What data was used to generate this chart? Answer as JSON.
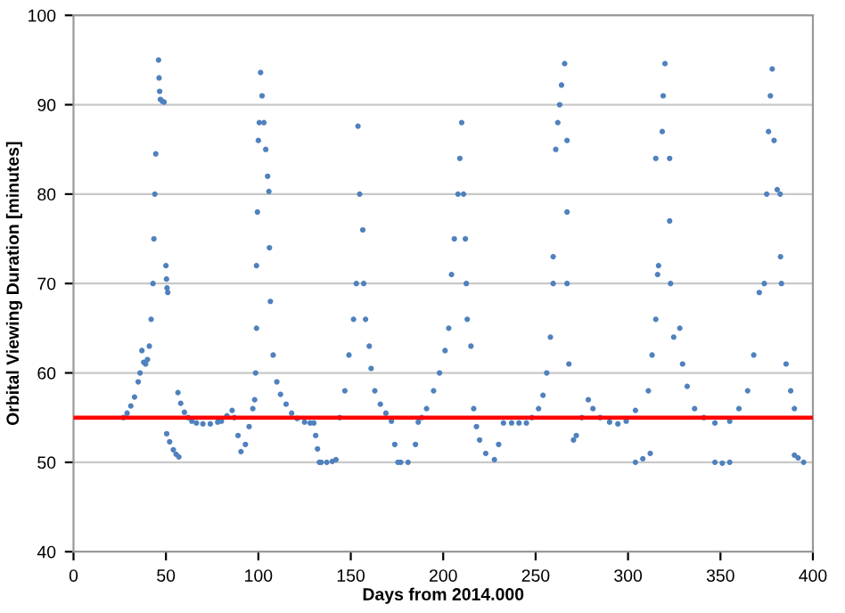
{
  "chart_data": {
    "type": "scatter",
    "xlabel": "Days from 2014.000",
    "ylabel": "Orbital Viewing Duration [minutes]",
    "xlim": [
      0,
      400
    ],
    "xticks": [
      0,
      50,
      100,
      150,
      200,
      250,
      300,
      350,
      400
    ],
    "ylim": [
      40,
      100
    ],
    "yticks": [
      40,
      50,
      60,
      70,
      80,
      90,
      100
    ],
    "grid": "y",
    "marker": "circle",
    "series": [
      {
        "color": "#4f81bd",
        "x": [
          27,
          29,
          31,
          33,
          35,
          36,
          37,
          38,
          39,
          40,
          41,
          42,
          43,
          43.5,
          44,
          44.5,
          46,
          46.3,
          46.6,
          47,
          48,
          49,
          50,
          50.3,
          50.6,
          51,
          50.4,
          52,
          54,
          55.5,
          57,
          56.5,
          58,
          60,
          62,
          64,
          66.5,
          70,
          74,
          78,
          80,
          83,
          85.8,
          87,
          89,
          90.6,
          93,
          95,
          97,
          98,
          98.5,
          99,
          99,
          99.5,
          100,
          100.5,
          101.2,
          102,
          103,
          104,
          105,
          105.7,
          106,
          106.5,
          108,
          110,
          112,
          115,
          118,
          121,
          125,
          128,
          130,
          131,
          132,
          133,
          134,
          137,
          140,
          142,
          144,
          146.8,
          149,
          151.5,
          153,
          153.9,
          154.8,
          156.5,
          157,
          158,
          160,
          161,
          163,
          166,
          169,
          172,
          173.8,
          175.5,
          177,
          181,
          185,
          186.5,
          188.4,
          191,
          194.8,
          198,
          201,
          203,
          204.5,
          206,
          208,
          209,
          210,
          211,
          212,
          212.5,
          213,
          215,
          216.5,
          218,
          219.7,
          223,
          227.7,
          230,
          232.6,
          237,
          241,
          245,
          248,
          251.6,
          254,
          256,
          258,
          259.5,
          259.5,
          260.9,
          262,
          263,
          264,
          265.7,
          267,
          267,
          267,
          268,
          270.5,
          272,
          275,
          278.5,
          281,
          284.9,
          290,
          294.5,
          299,
          304,
          304,
          308,
          312,
          311,
          313,
          315,
          316,
          316.5,
          315,
          318.5,
          319,
          320,
          322.5,
          322.5,
          323,
          324.7,
          328,
          329.5,
          332,
          336,
          341,
          347,
          347,
          351,
          355,
          355,
          360,
          364.7,
          368,
          371,
          373.7,
          375,
          376,
          377,
          378,
          379,
          380.7,
          382.3,
          382.5,
          383,
          385.5,
          388,
          390,
          390,
          392,
          395
        ],
        "values": [
          55,
          55.5,
          56.3,
          57.3,
          59,
          60,
          62.5,
          61.2,
          61,
          61.5,
          63,
          66,
          70,
          75,
          80,
          84.5,
          95,
          93,
          91.5,
          90.6,
          90.4,
          90.3,
          72,
          70.5,
          69.5,
          69,
          53.2,
          52.3,
          51.4,
          50.9,
          50.6,
          57.8,
          56.6,
          55.6,
          55,
          54.6,
          54.4,
          54.3,
          54.3,
          54.5,
          54.6,
          55.2,
          55.8,
          55,
          53,
          51.2,
          52,
          54,
          56,
          57,
          60,
          65,
          72,
          78,
          86,
          88,
          93.6,
          91,
          88,
          85,
          82,
          80.3,
          74,
          68,
          62,
          59,
          57.6,
          56.5,
          55.5,
          54.9,
          54.5,
          54.4,
          54.4,
          53,
          51.5,
          50,
          50,
          50,
          50.1,
          50.3,
          55,
          58,
          62,
          66,
          70,
          87.6,
          80,
          76,
          70,
          66,
          63,
          60.5,
          58,
          56.5,
          55.5,
          54.6,
          52,
          50,
          50,
          50,
          52,
          54.5,
          55,
          56,
          58,
          60,
          62.5,
          65,
          71,
          75,
          80,
          84,
          88,
          80,
          75,
          70,
          66,
          63,
          56,
          54,
          52.5,
          51,
          50.3,
          52,
          54.4,
          54.4,
          54.4,
          54.4,
          55,
          56,
          57.5,
          60,
          64,
          70,
          73,
          85,
          88,
          90,
          92.2,
          94.6,
          86,
          78,
          70,
          61,
          52.5,
          53,
          55,
          57,
          56,
          55,
          54.5,
          54.3,
          54.6,
          55.8,
          50,
          50.4,
          51,
          58,
          62,
          66,
          71,
          72,
          84,
          87,
          91,
          94.6,
          84,
          77,
          70,
          64,
          65,
          61,
          58.5,
          56,
          55,
          54.4,
          50,
          49.9,
          50,
          54.6,
          56,
          58,
          62,
          69,
          70,
          80,
          87,
          91,
          94,
          86,
          80.5,
          80,
          73,
          70,
          61,
          58,
          56,
          50.8,
          50.5,
          50
        ]
      }
    ],
    "ref_lines": [
      {
        "axis": "y",
        "value": 55,
        "color": "#ff0000",
        "line_style": "solid"
      }
    ]
  }
}
